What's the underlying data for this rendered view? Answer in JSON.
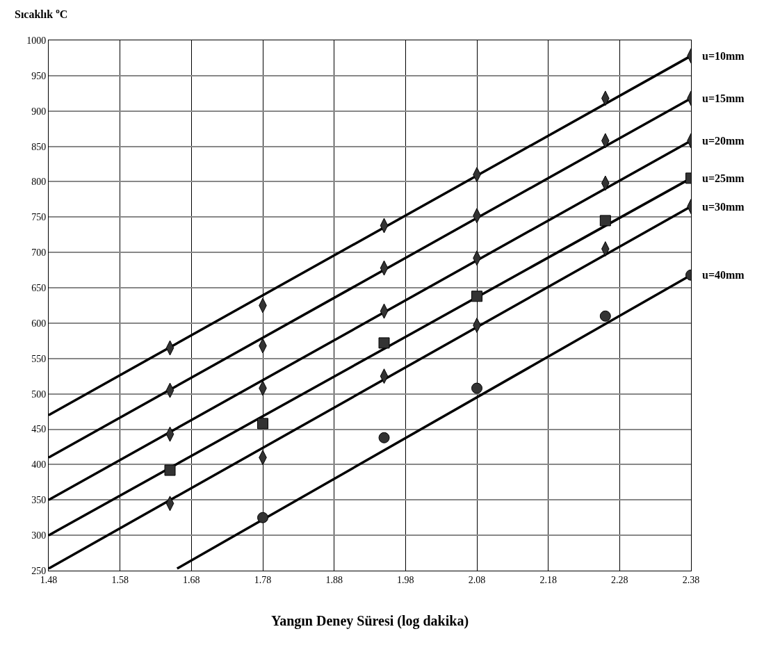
{
  "chart_data": {
    "type": "scatter",
    "ylabel": "Sıcaklık $^{o}$C",
    "xlabel": "Yangın Deney Süresi (log dakika)",
    "xlim": [
      1.48,
      2.38
    ],
    "xticks": [
      1.48,
      1.58,
      1.68,
      1.78,
      1.88,
      1.98,
      2.08,
      2.18,
      2.28,
      2.38
    ],
    "ylim": [
      250,
      1000
    ],
    "yticks": [
      250,
      300,
      350,
      400,
      450,
      500,
      550,
      600,
      650,
      700,
      750,
      800,
      850,
      900,
      950,
      1000
    ],
    "grid": true,
    "legend": false,
    "series": [
      {
        "name": "u=10mm",
        "marker": "diamond",
        "color": "#333333",
        "x": [
          1.65,
          1.78,
          1.95,
          2.08,
          2.26,
          2.38
        ],
        "values": [
          565,
          625,
          738,
          810,
          918,
          978
        ]
      },
      {
        "name": "u=15mm",
        "marker": "diamond",
        "color": "#333333",
        "x": [
          1.65,
          1.78,
          1.95,
          2.08,
          2.26,
          2.38
        ],
        "values": [
          505,
          568,
          678,
          752,
          858,
          918
        ]
      },
      {
        "name": "u=20mm",
        "marker": "diamond",
        "color": "#333333",
        "x": [
          1.65,
          1.78,
          1.95,
          2.08,
          2.26,
          2.38
        ],
        "values": [
          443,
          508,
          617,
          692,
          798,
          858
        ]
      },
      {
        "name": "u=25mm",
        "marker": "square",
        "color": "#333333",
        "x": [
          1.65,
          1.78,
          1.95,
          2.08,
          2.26,
          2.38
        ],
        "values": [
          392,
          458,
          572,
          638,
          745,
          805
        ]
      },
      {
        "name": "u=30mm",
        "marker": "diamond",
        "color": "#333333",
        "x": [
          1.65,
          1.78,
          1.95,
          2.08,
          2.26,
          2.38
        ],
        "values": [
          345,
          410,
          525,
          597,
          705,
          765
        ]
      },
      {
        "name": "u=40mm",
        "marker": "circle",
        "color": "#333333",
        "x": [
          1.78,
          1.95,
          2.08,
          2.26,
          2.38
        ],
        "values": [
          325,
          438,
          508,
          610,
          668
        ]
      },
      {
        "type": "line",
        "color": "#000000",
        "x": [
          1.48,
          2.38
        ],
        "values": [
          470,
          978
        ]
      },
      {
        "type": "line",
        "color": "#000000",
        "x": [
          1.48,
          2.38
        ],
        "values": [
          410,
          918
        ]
      },
      {
        "type": "line",
        "color": "#000000",
        "x": [
          1.48,
          2.38
        ],
        "values": [
          350,
          858
        ]
      },
      {
        "type": "line",
        "color": "#000000",
        "x": [
          1.48,
          2.38
        ],
        "values": [
          300,
          805
        ]
      },
      {
        "type": "line",
        "color": "#000000",
        "x": [
          1.48,
          2.38
        ],
        "values": [
          253,
          765
        ]
      },
      {
        "type": "line",
        "color": "#000000",
        "x": [
          1.66,
          2.38
        ],
        "values": [
          253,
          668
        ]
      }
    ]
  }
}
